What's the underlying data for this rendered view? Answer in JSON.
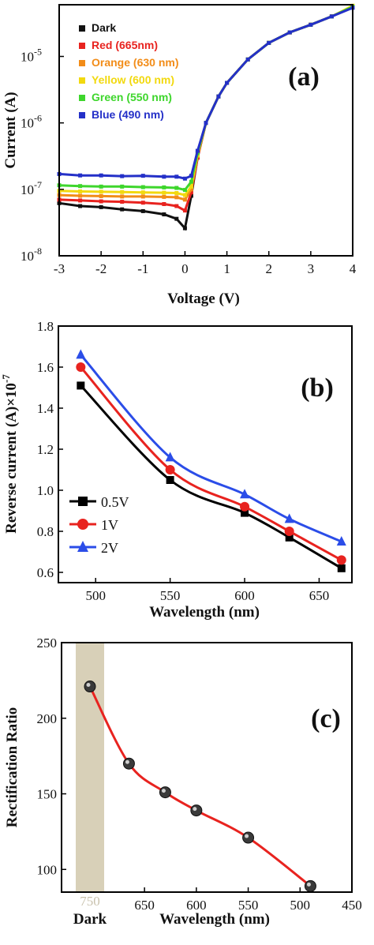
{
  "chart_data": [
    {
      "panel": "(a)",
      "type": "line",
      "xlabel": "Voltage (V)",
      "ylabel": "Current (A)",
      "xlim": [
        -3,
        4
      ],
      "ylim": [
        1e-08,
        6e-05
      ],
      "yscale": "log",
      "xticks": [
        "-3",
        "-2",
        "-1",
        "0",
        "1",
        "2",
        "3",
        "4"
      ],
      "yticks": [
        {
          "base": "10",
          "exp": "-8",
          "value": 1e-08
        },
        {
          "base": "10",
          "exp": "-7",
          "value": 1e-07
        },
        {
          "base": "10",
          "exp": "-6",
          "value": 1e-06
        },
        {
          "base": "10",
          "exp": "-5",
          "value": 1e-05
        }
      ],
      "legend_position": "top-left",
      "series": [
        {
          "name": "Dark",
          "color": "#111111",
          "x": [
            -3,
            -2.5,
            -2,
            -1.5,
            -1,
            -0.5,
            -0.2,
            0,
            0.15,
            0.3,
            0.5,
            0.8,
            1,
            1.5,
            2,
            2.5,
            3,
            3.5,
            4
          ],
          "y": [
            6.2e-08,
            5.6e-08,
            5.4e-08,
            5e-08,
            4.7e-08,
            4.2e-08,
            3.6e-08,
            2.6e-08,
            8e-08,
            3e-07,
            1e-06,
            2.5e-06,
            4e-06,
            9e-06,
            1.6e-05,
            2.3e-05,
            3e-05,
            4e-05,
            5.6e-05
          ]
        },
        {
          "name": "Red (665nm)",
          "color": "#e8231f",
          "x": [
            -3,
            -2.5,
            -2,
            -1.5,
            -1,
            -0.5,
            -0.2,
            0,
            0.15,
            0.3,
            0.5,
            0.8,
            1,
            1.5,
            2,
            2.5,
            3,
            3.5,
            4
          ],
          "y": [
            7e-08,
            6.8e-08,
            6.6e-08,
            6.5e-08,
            6.3e-08,
            6e-08,
            5.6e-08,
            4.8e-08,
            9e-08,
            3e-07,
            1e-06,
            2.5e-06,
            4e-06,
            9e-06,
            1.6e-05,
            2.3e-05,
            3e-05,
            4e-05,
            5.6e-05
          ]
        },
        {
          "name": "Orange (630 nm)",
          "color": "#f28c18",
          "x": [
            -3,
            -2.5,
            -2,
            -1.5,
            -1,
            -0.5,
            -0.2,
            0,
            0.15,
            0.3,
            0.5,
            0.8,
            1,
            1.5,
            2,
            2.5,
            3,
            3.5,
            4
          ],
          "y": [
            8.2e-08,
            8e-08,
            7.9e-08,
            7.8e-08,
            7.8e-08,
            7.7e-08,
            7.6e-08,
            7e-08,
            1e-07,
            3.2e-07,
            1e-06,
            2.5e-06,
            4e-06,
            9e-06,
            1.6e-05,
            2.3e-05,
            3e-05,
            4e-05,
            5.6e-05
          ]
        },
        {
          "name": "Yellow (600 nm)",
          "color": "#f2d90f",
          "x": [
            -3,
            -2.5,
            -2,
            -1.5,
            -1,
            -0.5,
            -0.2,
            0,
            0.15,
            0.3,
            0.5,
            0.8,
            1,
            1.5,
            2,
            2.5,
            3,
            3.5,
            4
          ],
          "y": [
            9.5e-08,
            9.3e-08,
            9.2e-08,
            9.1e-08,
            9e-08,
            8.9e-08,
            8.8e-08,
            8.2e-08,
            1.1e-07,
            3.3e-07,
            1e-06,
            2.5e-06,
            4e-06,
            9e-06,
            1.6e-05,
            2.3e-05,
            3e-05,
            4e-05,
            5.8e-05
          ]
        },
        {
          "name": "Green (550 nm)",
          "color": "#3ed62c",
          "x": [
            -3,
            -2.5,
            -2,
            -1.5,
            -1,
            -0.5,
            -0.2,
            0,
            0.15,
            0.3,
            0.5,
            0.8,
            1,
            1.5,
            2,
            2.5,
            3,
            3.5,
            4
          ],
          "y": [
            1.15e-07,
            1.12e-07,
            1.1e-07,
            1.1e-07,
            1.08e-07,
            1.07e-07,
            1.05e-07,
            9.8e-08,
            1.3e-07,
            3.5e-07,
            1e-06,
            2.5e-06,
            4e-06,
            9e-06,
            1.6e-05,
            2.3e-05,
            3e-05,
            4e-05,
            5.6e-05
          ]
        },
        {
          "name": "Blue (490 nm)",
          "color": "#2430c8",
          "x": [
            -3,
            -2.5,
            -2,
            -1.5,
            -1,
            -0.5,
            -0.2,
            0,
            0.15,
            0.3,
            0.5,
            0.8,
            1,
            1.5,
            2,
            2.5,
            3,
            3.5,
            4
          ],
          "y": [
            1.7e-07,
            1.62e-07,
            1.62e-07,
            1.58e-07,
            1.6e-07,
            1.55e-07,
            1.55e-07,
            1.45e-07,
            1.6e-07,
            3.8e-07,
            1e-06,
            2.5e-06,
            4e-06,
            9e-06,
            1.6e-05,
            2.3e-05,
            3e-05,
            4e-05,
            5.4e-05
          ]
        }
      ]
    },
    {
      "panel": "(b)",
      "type": "line",
      "xlabel": "Wavelength (nm)",
      "ylabel_main": "Reverse current (A)×10",
      "ylabel_exp": "-7",
      "xlim": [
        475,
        672
      ],
      "ylim": [
        0.55,
        1.8
      ],
      "xticks": [
        "500",
        "550",
        "600",
        "650"
      ],
      "yticks": [
        "0.6",
        "0.8",
        "1.0",
        "1.2",
        "1.4",
        "1.6",
        "1.8"
      ],
      "legend_position": "bottom-left",
      "x": [
        490,
        550,
        600,
        630,
        665
      ],
      "series": [
        {
          "name": "0.5V",
          "color": "#000000",
          "marker": "square",
          "values": [
            1.51,
            1.05,
            0.89,
            0.77,
            0.62
          ]
        },
        {
          "name": "1V",
          "color": "#e8231f",
          "marker": "circle",
          "values": [
            1.6,
            1.1,
            0.92,
            0.8,
            0.66
          ]
        },
        {
          "name": "2V",
          "color": "#2b4de8",
          "marker": "triangle",
          "values": [
            1.66,
            1.16,
            0.98,
            0.86,
            0.75
          ]
        }
      ]
    },
    {
      "panel": "(c)",
      "type": "line",
      "xlabel": "Wavelength (nm)",
      "ylabel": "Rectification Ratio",
      "xlim": [
        730,
        450
      ],
      "ylim": [
        85,
        250
      ],
      "xticks": [
        "650",
        "600",
        "550",
        "500",
        "450"
      ],
      "yticks": [
        "100",
        "150",
        "200",
        "250"
      ],
      "dark_label": "Dark",
      "dark_tick": "750",
      "highlight_color": "#d8d0b8",
      "line_color": "#e8231f",
      "x": [
        "Dark",
        665,
        630,
        600,
        550,
        490
      ],
      "values": [
        221,
        170,
        151,
        139,
        121,
        89
      ]
    }
  ]
}
